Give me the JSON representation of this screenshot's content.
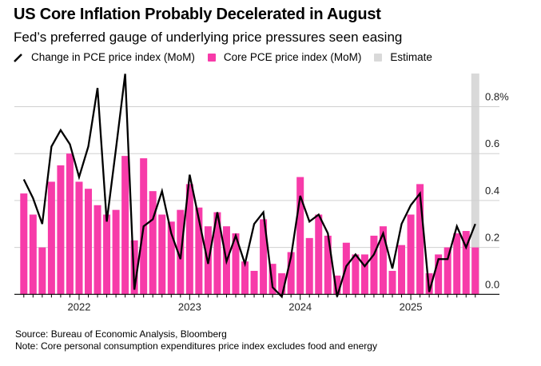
{
  "chart_data": {
    "type": "bar",
    "title": "US Core Inflation Probably Decelerated in August",
    "subtitle": "Fed’s preferred gauge of underlying price pressures seen easing",
    "xlabel": "",
    "ylabel": "",
    "ylim": [
      0,
      0.94
    ],
    "y_ticks": [
      {
        "value": 0,
        "label": "0.0"
      },
      {
        "value": 0.2,
        "label": "0.2"
      },
      {
        "value": 0.4,
        "label": "0.4"
      },
      {
        "value": 0.6,
        "label": "0.6"
      },
      {
        "value": 0.8,
        "label": "0.8%"
      }
    ],
    "x_ticks": [
      {
        "index": 6,
        "label": "2022"
      },
      {
        "index": 18,
        "label": "2023"
      },
      {
        "index": 30,
        "label": "2024"
      },
      {
        "index": 42,
        "label": "2025"
      }
    ],
    "categories": [
      "2021-07",
      "2021-08",
      "2021-09",
      "2021-10",
      "2021-11",
      "2021-12",
      "2022-01",
      "2022-02",
      "2022-03",
      "2022-04",
      "2022-05",
      "2022-06",
      "2022-07",
      "2022-08",
      "2022-09",
      "2022-10",
      "2022-11",
      "2022-12",
      "2023-01",
      "2023-02",
      "2023-03",
      "2023-04",
      "2023-05",
      "2023-06",
      "2023-07",
      "2023-08",
      "2023-09",
      "2023-10",
      "2023-11",
      "2023-12",
      "2024-01",
      "2024-02",
      "2024-03",
      "2024-04",
      "2024-05",
      "2024-06",
      "2024-07",
      "2024-08",
      "2024-09",
      "2024-10",
      "2024-11",
      "2024-12",
      "2025-01",
      "2025-02",
      "2025-03",
      "2025-04",
      "2025-05",
      "2025-06",
      "2025-07",
      "2025-08"
    ],
    "series": [
      {
        "name": "Change in PCE price index (MoM)",
        "type": "line",
        "color": "#000000",
        "values": [
          0.49,
          0.41,
          0.3,
          0.63,
          0.7,
          0.64,
          0.5,
          0.63,
          0.88,
          0.31,
          0.62,
          0.94,
          0.02,
          0.29,
          0.32,
          0.44,
          0.26,
          0.15,
          0.51,
          0.32,
          0.13,
          0.35,
          0.14,
          0.25,
          0.13,
          0.3,
          0.35,
          0.03,
          -0.01,
          0.16,
          0.42,
          0.31,
          0.34,
          0.26,
          -0.01,
          0.12,
          0.17,
          0.12,
          0.17,
          0.26,
          0.11,
          0.3,
          0.38,
          0.43,
          0.01,
          0.15,
          0.15,
          0.29,
          0.2,
          0.3
        ]
      },
      {
        "name": "Core PCE price index (MoM)",
        "type": "bar",
        "color": "#f73ba9",
        "values": [
          0.43,
          0.34,
          0.2,
          0.48,
          0.55,
          0.6,
          0.48,
          0.45,
          0.38,
          0.34,
          0.36,
          0.59,
          0.23,
          0.58,
          0.44,
          0.34,
          0.31,
          0.36,
          0.47,
          0.37,
          0.29,
          0.35,
          0.29,
          0.26,
          0.14,
          0.1,
          0.32,
          0.13,
          0.09,
          0.18,
          0.5,
          0.24,
          0.34,
          0.25,
          0.08,
          0.22,
          0.17,
          0.17,
          0.25,
          0.29,
          0.1,
          0.21,
          0.34,
          0.47,
          0.09,
          0.17,
          0.2,
          0.26,
          0.27,
          0.2
        ]
      }
    ],
    "estimate": {
      "name": "Estimate",
      "color": "#d9d9d9",
      "categories": [
        "2025-08"
      ]
    },
    "legend": [
      "Change in PCE price index (MoM)",
      "Core PCE price index (MoM)",
      "Estimate"
    ],
    "legend_placement": "top-left",
    "grid": true
  },
  "footer": {
    "source": "Source: Bureau of Economic Analysis, Bloomberg",
    "note": "Note: Core personal consumption expenditures price index excludes food and energy"
  }
}
